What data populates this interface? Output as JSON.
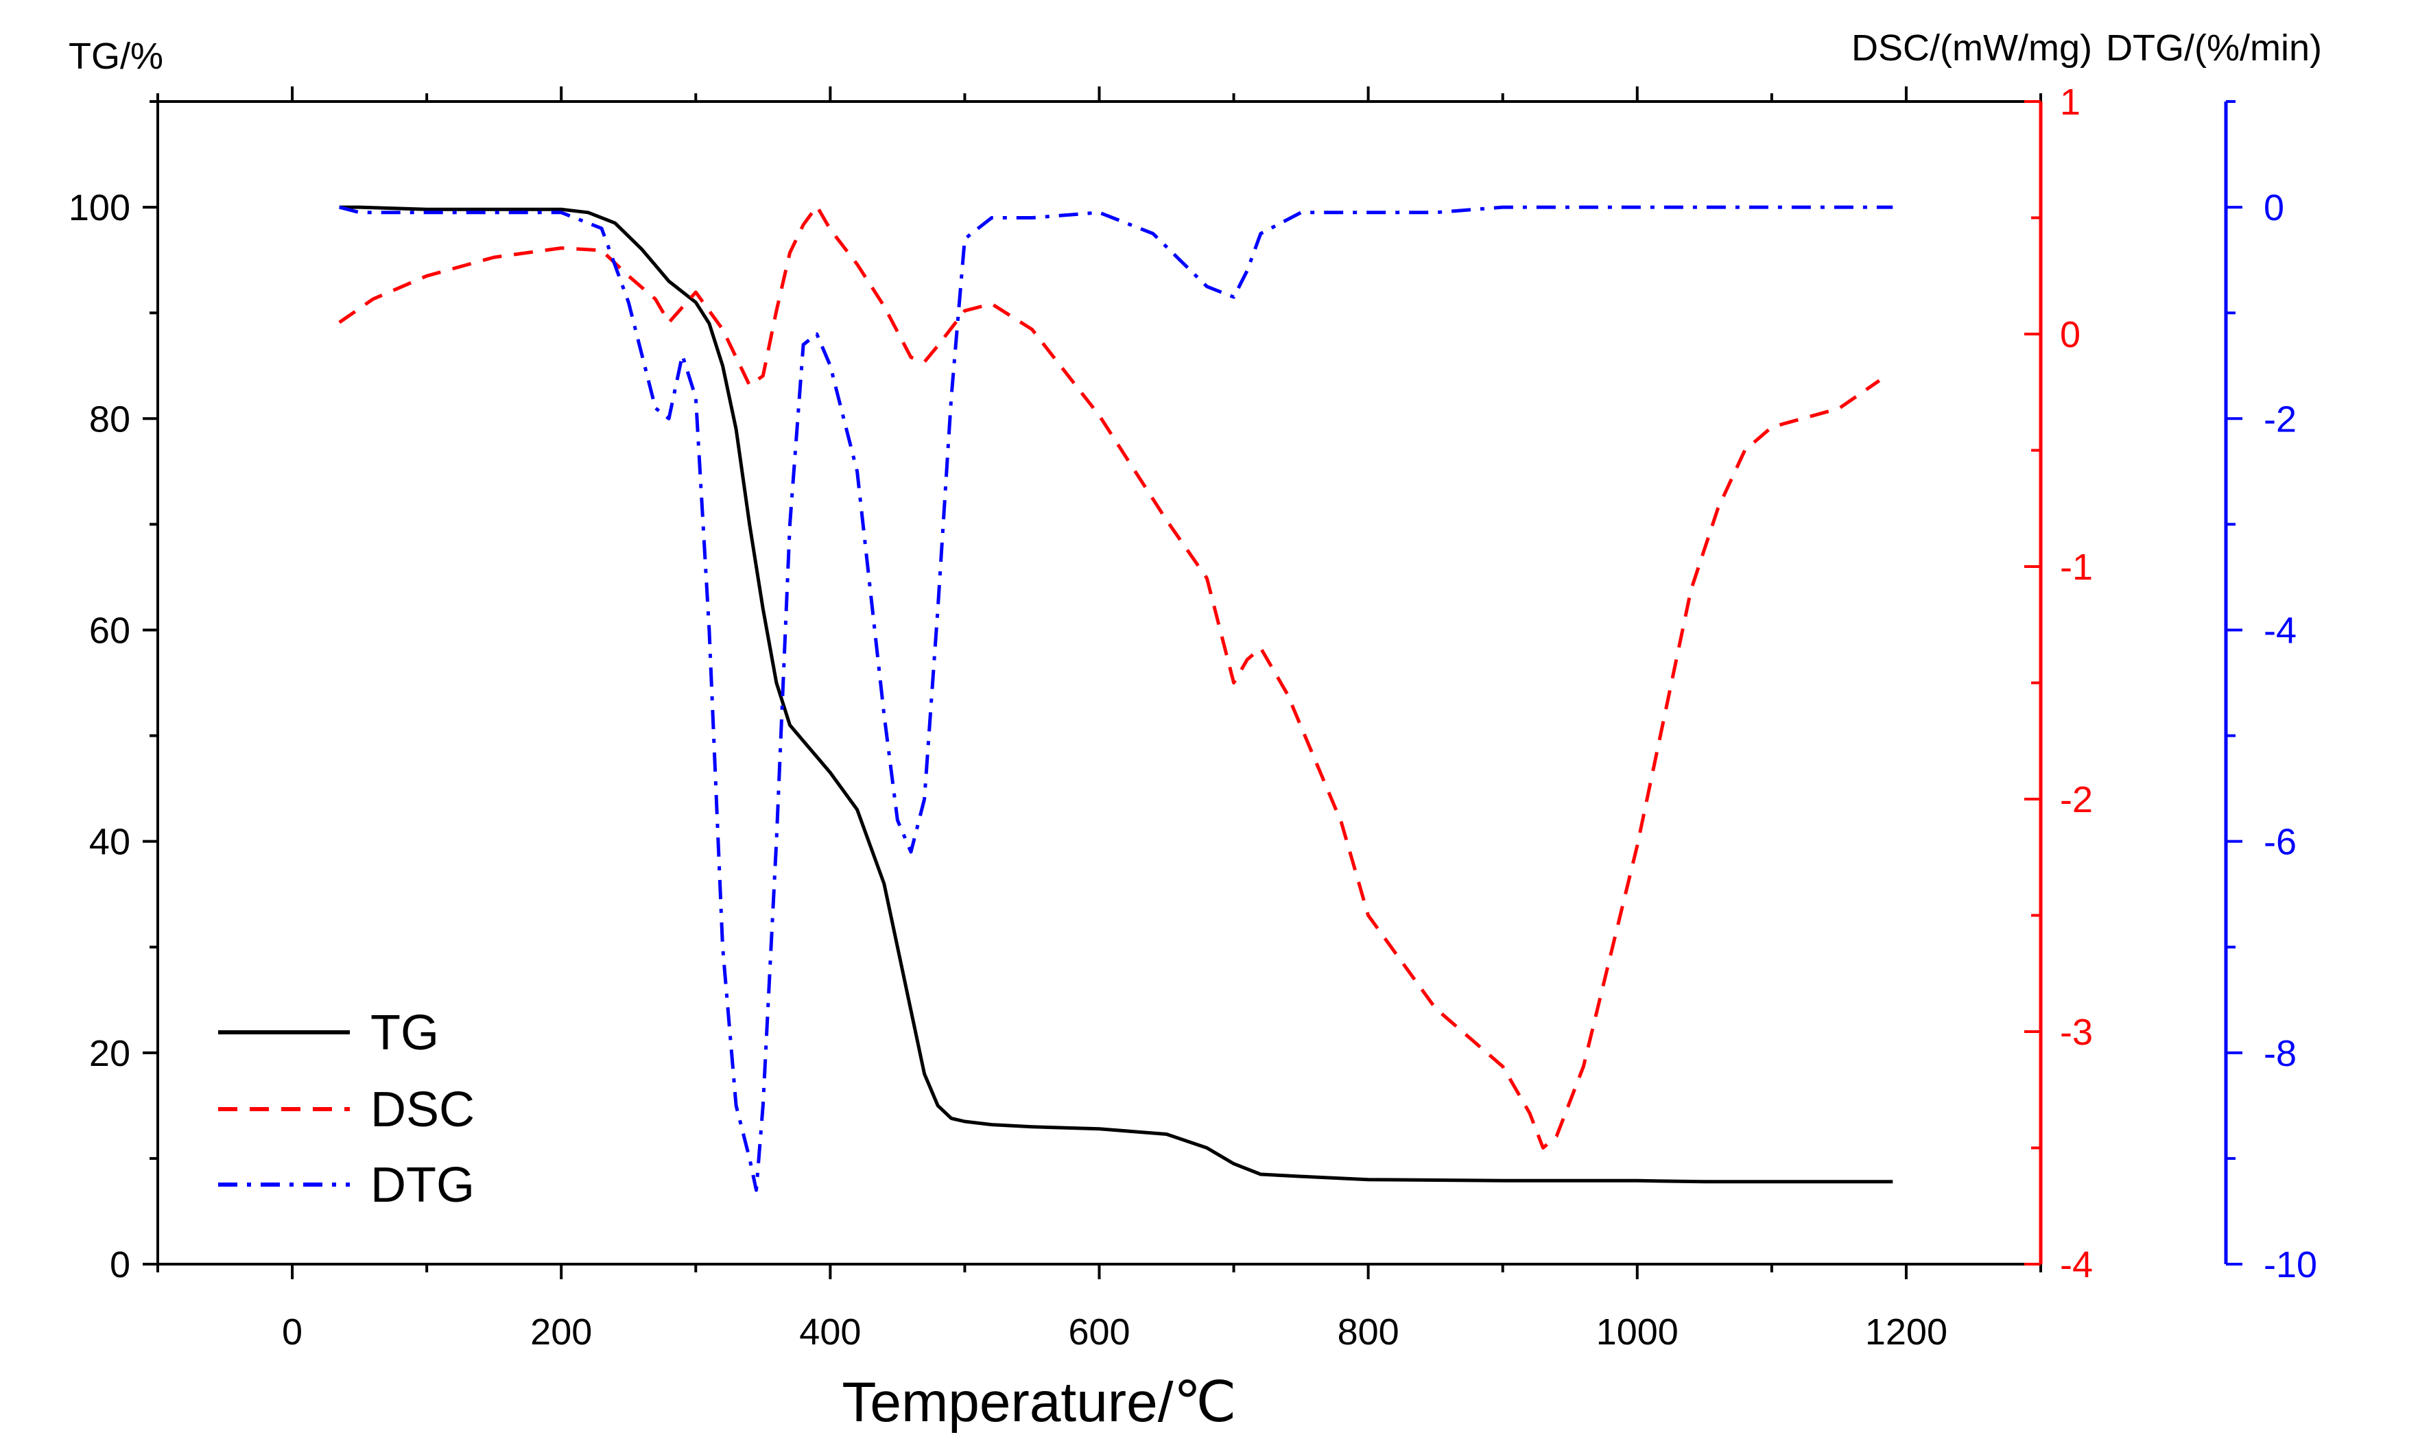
{
  "chart_data": {
    "type": "line",
    "title": "",
    "xlabel": "Temperature/℃",
    "ylabels": {
      "tg": "TG/%",
      "dsc": "DSC/(mW/mg)",
      "dtg": "DTG/(%/min)"
    },
    "xlim": [
      -100,
      1300
    ],
    "xticks": [
      "0",
      "200",
      "400",
      "600",
      "800",
      "1000",
      "1200"
    ],
    "axes": {
      "tg": {
        "lim": [
          0,
          110
        ],
        "ticks": [
          "0",
          "20",
          "40",
          "60",
          "80",
          "100"
        ],
        "color": "#000000"
      },
      "dsc": {
        "lim": [
          -4,
          1
        ],
        "ticks": [
          "-4",
          "-3",
          "-2",
          "-1",
          "0",
          "1"
        ],
        "color": "#ff0000"
      },
      "dtg": {
        "lim": [
          -10,
          1
        ],
        "ticks": [
          "-10",
          "-8",
          "-6",
          "-4",
          "-2",
          "0"
        ],
        "color": "#0000ff"
      }
    },
    "legend_position": "bottom-left",
    "series": [
      {
        "name": "TG",
        "axis": "tg",
        "color": "#000000",
        "style": "solid",
        "x": [
          35,
          50,
          100,
          150,
          200,
          220,
          240,
          260,
          280,
          300,
          310,
          320,
          330,
          340,
          350,
          360,
          370,
          380,
          390,
          400,
          420,
          440,
          450,
          460,
          470,
          480,
          490,
          500,
          520,
          550,
          600,
          650,
          680,
          700,
          720,
          750,
          800,
          900,
          1000,
          1050,
          1100,
          1150,
          1190
        ],
        "y": [
          100,
          100,
          99.8,
          99.8,
          99.8,
          99.5,
          98.5,
          96,
          93,
          91,
          89,
          85,
          79,
          70,
          62,
          55,
          51,
          49.5,
          48,
          46.5,
          43,
          36,
          30,
          24,
          18,
          15,
          13.8,
          13.5,
          13.2,
          13,
          12.8,
          12.3,
          11,
          9.5,
          8.5,
          8.3,
          8,
          7.9,
          7.9,
          7.8,
          7.8,
          7.8,
          7.8
        ]
      },
      {
        "name": "DSC",
        "axis": "dsc",
        "color": "#ff0000",
        "style": "dashed",
        "x": [
          35,
          60,
          100,
          150,
          200,
          230,
          250,
          270,
          280,
          300,
          320,
          340,
          350,
          360,
          370,
          380,
          390,
          400,
          420,
          440,
          460,
          470,
          480,
          500,
          520,
          550,
          600,
          650,
          680,
          700,
          710,
          720,
          740,
          780,
          800,
          850,
          880,
          900,
          920,
          930,
          940,
          960,
          1000,
          1040,
          1060,
          1080,
          1100,
          1150,
          1180
        ],
        "y": [
          0.05,
          0.15,
          0.25,
          0.33,
          0.37,
          0.36,
          0.25,
          0.15,
          0.05,
          0.18,
          0.02,
          -0.22,
          -0.18,
          0.1,
          0.35,
          0.47,
          0.55,
          0.45,
          0.3,
          0.12,
          -0.1,
          -0.12,
          -0.05,
          0.1,
          0.13,
          0.02,
          -0.35,
          -0.8,
          -1.05,
          -1.5,
          -1.4,
          -1.35,
          -1.55,
          -2.1,
          -2.5,
          -2.9,
          -3.05,
          -3.15,
          -3.35,
          -3.5,
          -3.45,
          -3.15,
          -2.2,
          -1.1,
          -0.75,
          -0.5,
          -0.4,
          -0.32,
          -0.2
        ]
      },
      {
        "name": "DTG",
        "axis": "dtg",
        "color": "#0000ff",
        "style": "dashdot",
        "x": [
          35,
          50,
          100,
          150,
          200,
          230,
          250,
          260,
          270,
          280,
          290,
          300,
          310,
          320,
          330,
          340,
          345,
          350,
          360,
          370,
          380,
          390,
          400,
          420,
          440,
          450,
          460,
          470,
          480,
          490,
          500,
          520,
          550,
          600,
          640,
          660,
          680,
          700,
          710,
          720,
          750,
          800,
          850,
          900,
          1000,
          1100,
          1150,
          1190
        ],
        "y": [
          0,
          -0.05,
          -0.05,
          -0.05,
          -0.05,
          -0.2,
          -0.9,
          -1.4,
          -1.9,
          -2,
          -1.4,
          -1.8,
          -4,
          -7,
          -8.5,
          -9,
          -9.3,
          -8.5,
          -6,
          -3,
          -1.3,
          -1.2,
          -1.5,
          -2.5,
          -4.8,
          -5.8,
          -6.1,
          -5.6,
          -3.8,
          -1.8,
          -0.3,
          -0.1,
          -0.1,
          -0.05,
          -0.25,
          -0.5,
          -0.75,
          -0.85,
          -0.6,
          -0.25,
          -0.05,
          -0.05,
          -0.05,
          0,
          0,
          0,
          0,
          0
        ]
      }
    ]
  }
}
